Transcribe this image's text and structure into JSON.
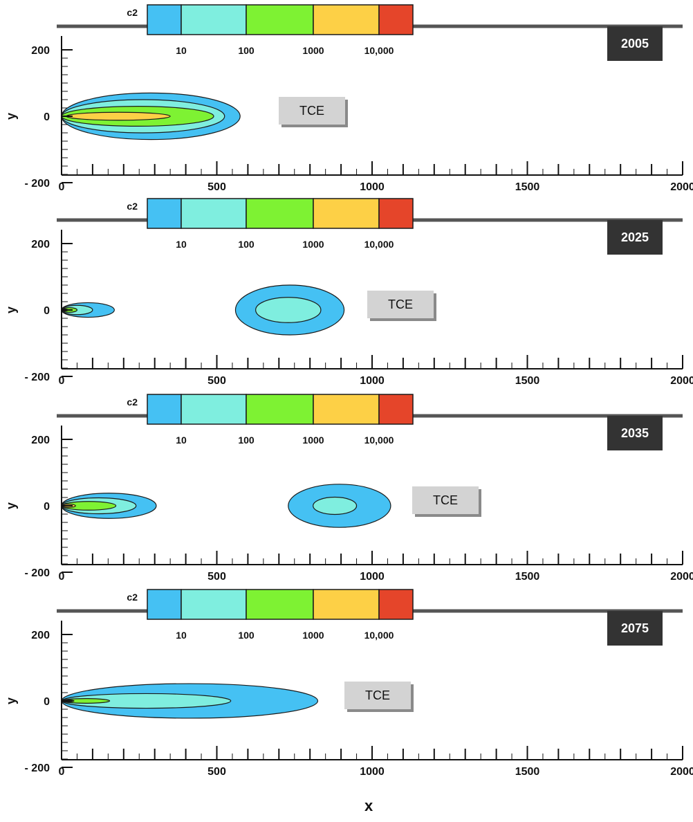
{
  "chart_data": [
    {
      "type": "contour",
      "year": "2005",
      "xlabel": "x",
      "ylabel": "y",
      "xlim": [
        0,
        2000
      ],
      "ylim": [
        -200,
        200
      ],
      "x_ticks": [
        "0",
        "500",
        "1000",
        "1500",
        "2000"
      ],
      "y_ticks": [
        "200",
        "0",
        "- 200"
      ],
      "colorbar": {
        "title": "c2",
        "ticks": [
          "10",
          "100",
          "1000",
          "10,000"
        ]
      },
      "label": "TCE",
      "plumes": [
        {
          "contours": [
            {
              "level": 1,
              "x0": 0,
              "x1": 575,
              "half_width": 70
            },
            {
              "level": 10,
              "x0": 0,
              "x1": 525,
              "half_width": 50
            },
            {
              "level": 100,
              "x0": 0,
              "x1": 490,
              "half_width": 30
            },
            {
              "level": 1000,
              "x0": 15,
              "x1": 350,
              "half_width": 12
            }
          ]
        }
      ]
    },
    {
      "type": "contour",
      "year": "2025",
      "xlabel": "x",
      "ylabel": "y",
      "xlim": [
        0,
        2000
      ],
      "ylim": [
        -200,
        200
      ],
      "x_ticks": [
        "0",
        "500",
        "1000",
        "1500",
        "2000"
      ],
      "y_ticks": [
        "200",
        "0",
        "- 200"
      ],
      "colorbar": {
        "title": "c2",
        "ticks": [
          "10",
          "100",
          "1000",
          "10,000"
        ]
      },
      "label": "TCE",
      "plumes": [
        {
          "contours": [
            {
              "level": 1,
              "x0": 0,
              "x1": 170,
              "half_width": 22
            },
            {
              "level": 10,
              "x0": 0,
              "x1": 100,
              "half_width": 14
            },
            {
              "level": 100,
              "x0": 0,
              "x1": 50,
              "half_width": 7
            },
            {
              "level": 1000,
              "x0": 0,
              "x1": 20,
              "half_width": 3
            }
          ]
        },
        {
          "contours": [
            {
              "level": 1,
              "x0": 560,
              "x1": 910,
              "half_width": 75
            },
            {
              "level": 10,
              "x0": 625,
              "x1": 835,
              "half_width": 38
            }
          ]
        }
      ]
    },
    {
      "type": "contour",
      "year": "2035",
      "xlabel": "x",
      "ylabel": "y",
      "xlim": [
        0,
        2000
      ],
      "ylim": [
        -200,
        200
      ],
      "x_ticks": [
        "0",
        "500",
        "1000",
        "1500",
        "2000"
      ],
      "y_ticks": [
        "200",
        "0",
        "- 200"
      ],
      "colorbar": {
        "title": "c2",
        "ticks": [
          "10",
          "100",
          "1000",
          "10,000"
        ]
      },
      "label": "TCE",
      "plumes": [
        {
          "contours": [
            {
              "level": 1,
              "x0": 0,
              "x1": 305,
              "half_width": 38
            },
            {
              "level": 10,
              "x0": 0,
              "x1": 240,
              "half_width": 24
            },
            {
              "level": 100,
              "x0": 0,
              "x1": 175,
              "half_width": 13
            },
            {
              "level": 1000,
              "x0": 0,
              "x1": 45,
              "half_width": 5
            }
          ]
        },
        {
          "contours": [
            {
              "level": 1,
              "x0": 730,
              "x1": 1060,
              "half_width": 65
            },
            {
              "level": 10,
              "x0": 810,
              "x1": 950,
              "half_width": 26
            }
          ]
        }
      ]
    },
    {
      "type": "contour",
      "year": "2075",
      "xlabel": "x",
      "ylabel": "y",
      "xlim": [
        0,
        2000
      ],
      "ylim": [
        -200,
        200
      ],
      "x_ticks": [
        "0",
        "500",
        "1000",
        "1500",
        "2000"
      ],
      "y_ticks": [
        "200",
        "0",
        "- 200"
      ],
      "colorbar": {
        "title": "c2",
        "ticks": [
          "10",
          "100",
          "1000",
          "10,000"
        ]
      },
      "label": "TCE",
      "plumes": [
        {
          "contours": [
            {
              "level": 1,
              "x0": 0,
              "x1": 825,
              "half_width": 52
            },
            {
              "level": 10,
              "x0": 0,
              "x1": 545,
              "half_width": 22
            },
            {
              "level": 100,
              "x0": 0,
              "x1": 155,
              "half_width": 7
            },
            {
              "level": 1000,
              "x0": 0,
              "x1": 40,
              "half_width": 3
            }
          ]
        }
      ]
    }
  ],
  "x_axis_title": "x",
  "colors": {
    "band_1_10": "#45c1f3",
    "band_10_100": "#7feedf",
    "band_100_1000": "#7ef233",
    "band_1000_10000": "#fdd046",
    "band_over_10000": "#e5452a",
    "badge": "#333333",
    "label_box": "#d3d3d3"
  }
}
